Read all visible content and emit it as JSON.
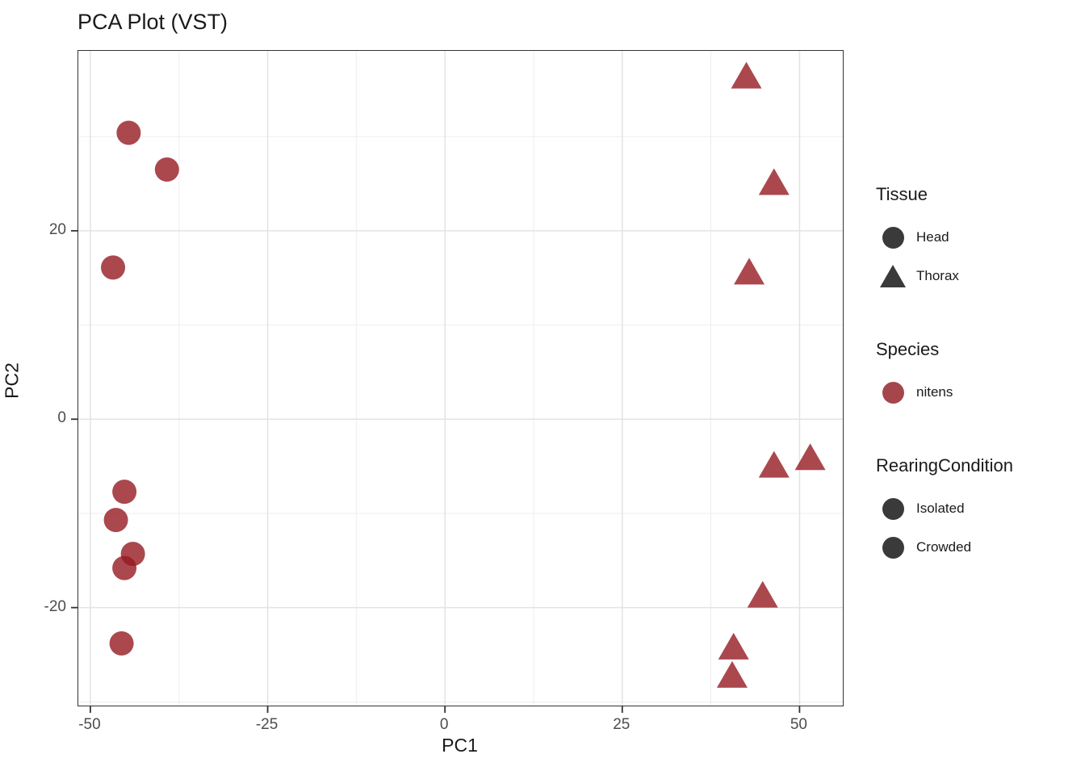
{
  "title": "PCA Plot (VST)",
  "chart_data": {
    "type": "scatter",
    "title": "PCA Plot (VST)",
    "xlabel": "PC1",
    "ylabel": "PC2",
    "xlim": [
      -51.7,
      56.1
    ],
    "ylim": [
      -30.4,
      39.1
    ],
    "x_ticks": [
      -50,
      -25,
      0,
      25,
      50
    ],
    "y_ticks": [
      20,
      0,
      -20
    ],
    "x_tick_labels": [
      "-50",
      "-25",
      "0",
      "25",
      "50"
    ],
    "y_tick_labels": [
      "20",
      "0",
      "-20"
    ],
    "x_minor": [
      -37.5,
      -12.5,
      12.5,
      37.5
    ],
    "y_minor": [
      30,
      10,
      -10,
      -30
    ],
    "grid": true,
    "legend_position": "right",
    "point_color": "#951A22",
    "point_alpha": 0.8,
    "major_grid_color": "#e3e3e3",
    "minor_grid_color": "#ededed",
    "axis_text_color": "#4d4d4d",
    "panel_border_color": "#333333",
    "series": [
      {
        "name": "Head",
        "shape": "circle",
        "points": [
          [
            -44.6,
            30.4
          ],
          [
            -39.2,
            26.5
          ],
          [
            -46.8,
            16.1
          ],
          [
            -45.2,
            -7.7
          ],
          [
            -46.4,
            -10.7
          ],
          [
            -44.0,
            -14.3
          ],
          [
            -45.2,
            -15.8
          ],
          [
            -45.6,
            -23.8
          ]
        ]
      },
      {
        "name": "Thorax",
        "shape": "triangle",
        "points": [
          [
            42.5,
            36.3
          ],
          [
            46.4,
            25.0
          ],
          [
            42.9,
            15.5
          ],
          [
            46.4,
            -5.0
          ],
          [
            51.5,
            -4.2
          ],
          [
            44.8,
            -18.8
          ],
          [
            40.7,
            -24.3
          ],
          [
            40.5,
            -27.3
          ]
        ]
      }
    ]
  },
  "legend": {
    "tissue": {
      "title": "Tissue",
      "symbol_color": "#3a3a3a",
      "items": [
        {
          "label": "Head",
          "shape": "circle"
        },
        {
          "label": "Thorax",
          "shape": "triangle"
        }
      ]
    },
    "species": {
      "title": "Species",
      "symbol_color": "#A4464C",
      "items": [
        {
          "label": "nitens",
          "shape": "circle"
        }
      ]
    },
    "rearing": {
      "title": "RearingCondition",
      "symbol_color": "#3a3a3a",
      "items": [
        {
          "label": "Isolated",
          "shape": "circle"
        },
        {
          "label": "Crowded",
          "shape": "circle"
        }
      ]
    }
  }
}
